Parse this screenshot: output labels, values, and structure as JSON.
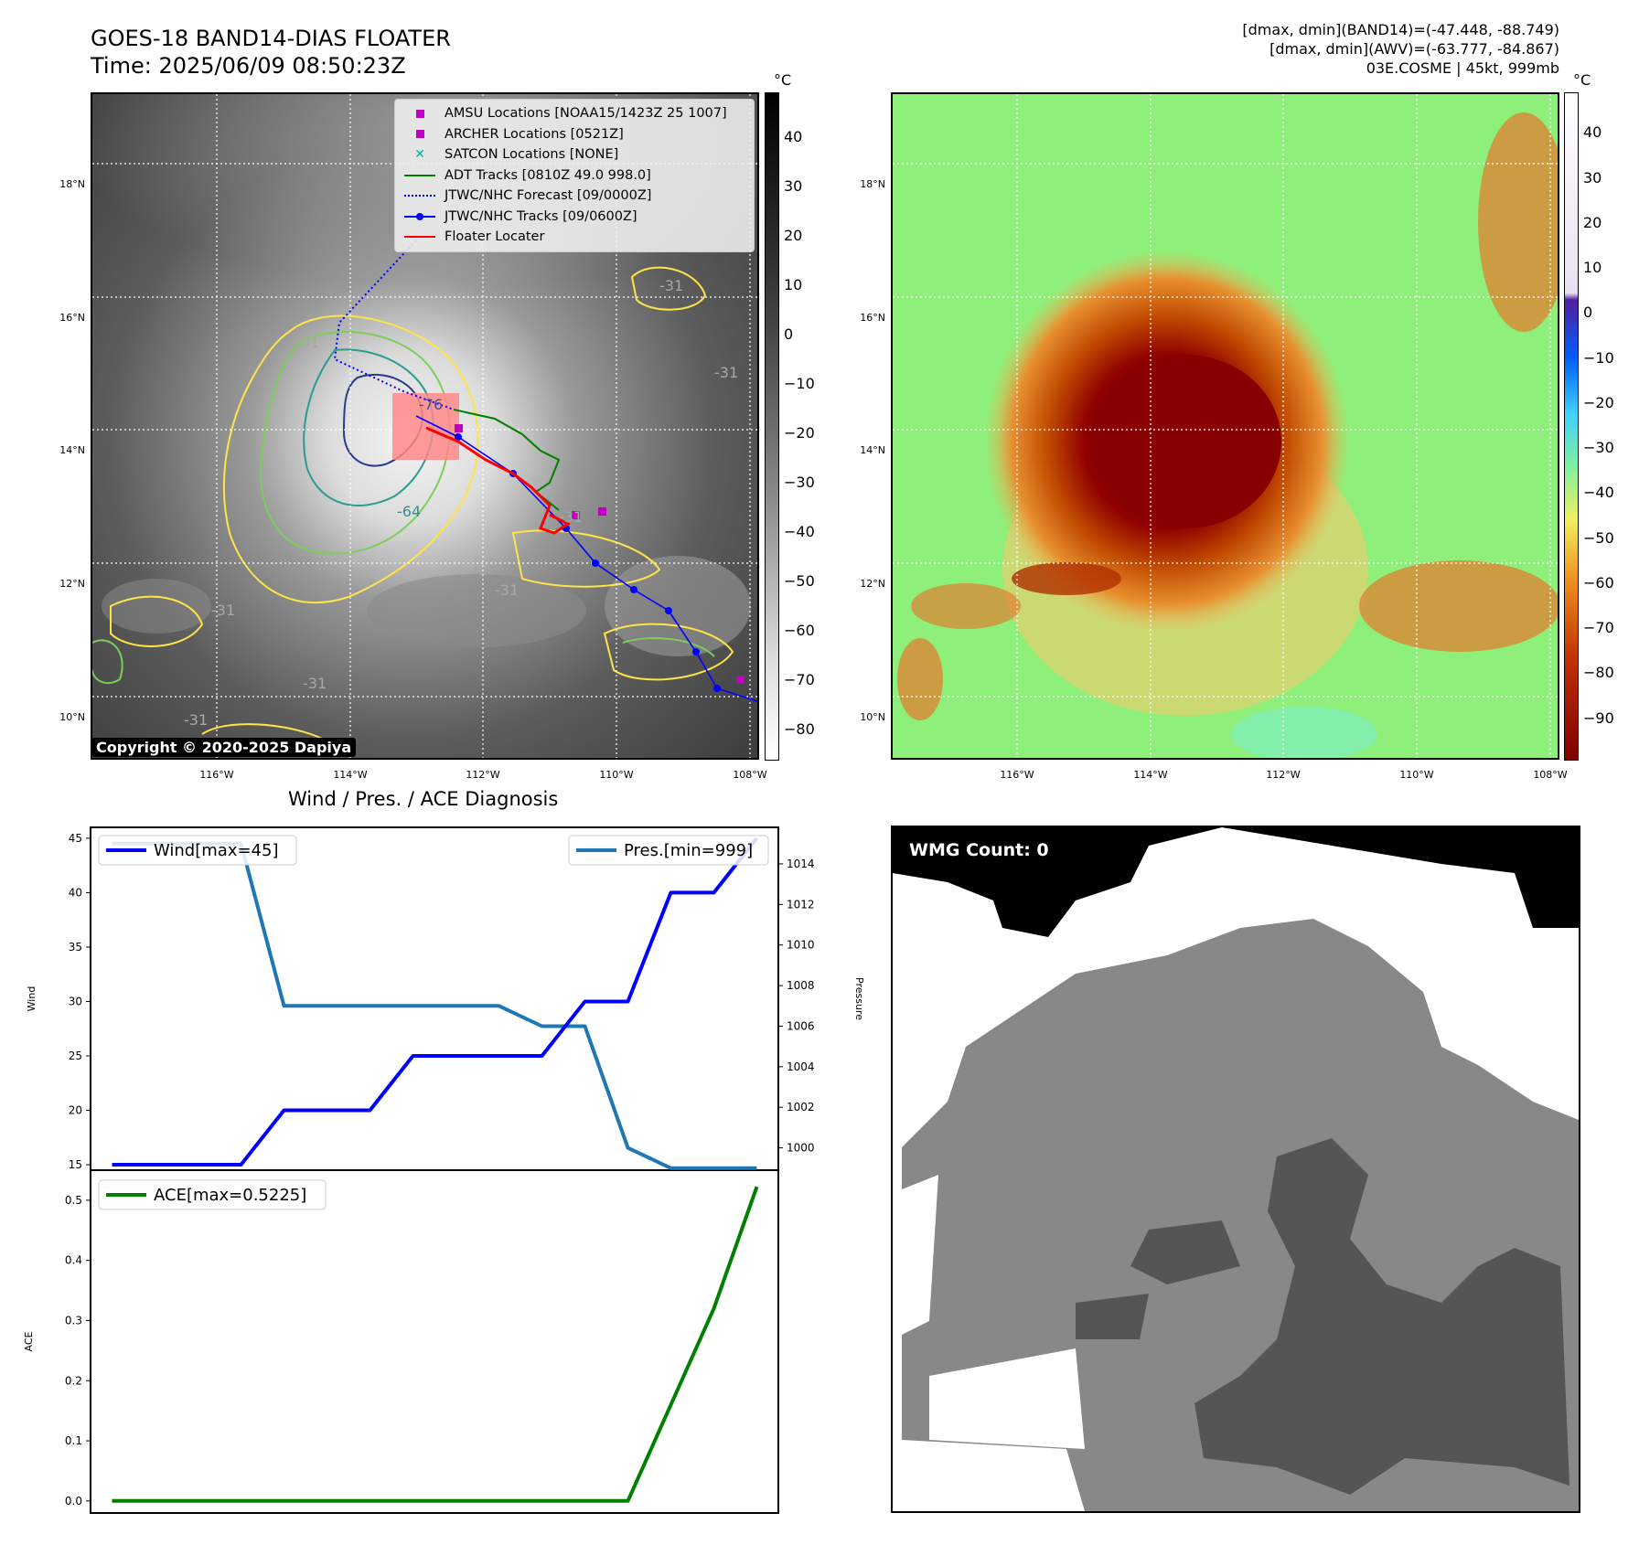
{
  "header": {
    "title_line1": "GOES-18 BAND14-DIAS FLOATER",
    "title_line2": "Time: 2025/06/09 08:50:23Z",
    "right_line1": "[dmax, dmin](BAND14)=(-47.448, -88.749)",
    "right_line2": "[dmax, dmin](AWV)=(-63.777, -84.867)",
    "right_line3": "03E.COSME | 45kt, 999mb"
  },
  "map_axes": {
    "lat_labels": [
      "18°N",
      "16°N",
      "14°N",
      "12°N",
      "10°N"
    ],
    "lon_labels": [
      "116°W",
      "114°W",
      "112°W",
      "110°W",
      "108°W"
    ]
  },
  "ir_panel": {
    "colorbar_unit": "°C",
    "colorbar_ticks": [
      "40",
      "30",
      "20",
      "10",
      "0",
      "−10",
      "−20",
      "−30",
      "−40",
      "−50",
      "−60",
      "−70",
      "−80"
    ],
    "contour_labels": [
      "-31",
      "-76",
      "-64",
      "-31",
      "-31",
      "-31",
      "-31",
      "-31",
      "-31",
      "-31"
    ],
    "copyright": "Copyright © 2020-2025 Dapiya",
    "legend": [
      {
        "label": "AMSU Locations [NOAA15/1423Z 25 1007]",
        "symbol": "square",
        "color": "#c000c0"
      },
      {
        "label": "ARCHER Locations [0521Z]",
        "symbol": "square",
        "color": "#c000c0"
      },
      {
        "label": "SATCON Locations [NONE]",
        "symbol": "x",
        "color": "#00b0b0"
      },
      {
        "label": "ADT Tracks [0810Z 49.0 998.0]",
        "symbol": "line",
        "color": "#008000"
      },
      {
        "label": "JTWC/NHC Forecast [09/0000Z]",
        "symbol": "dotted",
        "color": "#0000ff"
      },
      {
        "label": "JTWC/NHC Tracks [09/0600Z]",
        "symbol": "line-dot",
        "color": "#0000ff"
      },
      {
        "label": "Floater Locater",
        "symbol": "line",
        "color": "#ff0000"
      }
    ]
  },
  "awv_panel": {
    "colorbar_unit": "°C",
    "colorbar_ticks": [
      "40",
      "30",
      "20",
      "10",
      "0",
      "−10",
      "−20",
      "−30",
      "−40",
      "−50",
      "−60",
      "−70",
      "−80",
      "−90"
    ]
  },
  "wmg_panel": {
    "badge": "WMG Count: 0"
  },
  "chart_data": [
    {
      "type": "line",
      "title": "Wind / Pres. / ACE Diagnosis",
      "ylabel": "Wind",
      "y2label": "Pressure",
      "ylim": [
        14.5,
        46
      ],
      "y2lim": [
        998.9,
        1015.8
      ],
      "x": [
        0,
        1,
        2,
        3,
        4,
        5,
        6,
        7,
        8,
        9,
        10,
        11,
        12,
        13,
        14,
        15
      ],
      "series": [
        {
          "name": "Wind[max=45]",
          "axis": "left",
          "color": "#0000ff",
          "values": [
            15,
            15,
            15,
            15,
            20,
            20,
            20,
            25,
            25,
            25,
            25,
            30,
            30,
            40,
            40,
            45
          ]
        },
        {
          "name": "Pres.[min=999]",
          "axis": "right",
          "color": "#1f77b4",
          "values": [
            1015,
            1015,
            1015,
            1015,
            1007,
            1007,
            1007,
            1007,
            1007,
            1007,
            1006,
            1006,
            1000,
            999,
            999,
            999
          ]
        }
      ],
      "yticks": [
        15,
        20,
        25,
        30,
        35,
        40,
        45
      ],
      "y2ticks": [
        1000,
        1002,
        1004,
        1006,
        1008,
        1010,
        1012,
        1014
      ]
    },
    {
      "type": "line",
      "ylabel": "ACE",
      "ylim": [
        -0.02,
        0.55
      ],
      "x": [
        0,
        1,
        2,
        3,
        4,
        5,
        6,
        7,
        8,
        9,
        10,
        11,
        12,
        13,
        14,
        15
      ],
      "series": [
        {
          "name": "ACE[max=0.5225]",
          "color": "#008000",
          "values": [
            0,
            0,
            0,
            0,
            0,
            0,
            0,
            0,
            0,
            0,
            0,
            0,
            0,
            0.16,
            0.32,
            0.5225
          ]
        }
      ],
      "yticks": [
        0.0,
        0.1,
        0.2,
        0.3,
        0.4,
        0.5
      ]
    }
  ]
}
